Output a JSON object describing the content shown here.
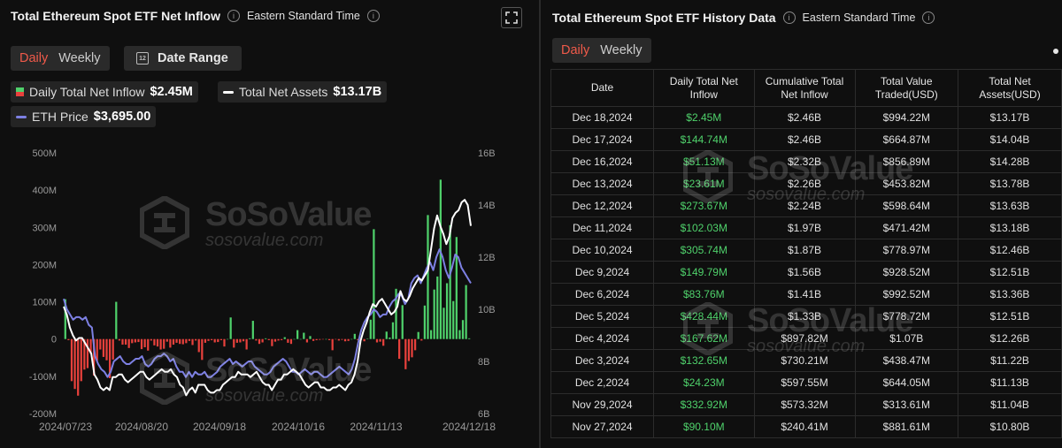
{
  "left": {
    "title": "Total Ethereum Spot ETF Net Inflow",
    "timezone": "Eastern Standard Time",
    "tabs": [
      "Daily",
      "Weekly"
    ],
    "active_tab": "Daily",
    "date_range_label": "Date Range",
    "calendar_icon_text": "12",
    "legend": {
      "inflow_label": "Daily Total Net Inflow",
      "inflow_value": "$2.45M",
      "assets_label": "Total Net Assets",
      "assets_value": "$13.17B",
      "eth_label": "ETH Price",
      "eth_value": "$3,695.00"
    },
    "watermark": {
      "brand": "SoSoValue",
      "site": "sosovalue.com"
    }
  },
  "right": {
    "title": "Total Ethereum Spot ETF History Data",
    "timezone": "Eastern Standard Time",
    "tabs": [
      "Daily",
      "Weekly"
    ],
    "active_tab": "Daily",
    "columns": [
      "Date",
      "Daily Total Net Inflow",
      "Cumulative Total Net Inflow",
      "Total Value Traded(USD)",
      "Total Net Assets(USD)"
    ],
    "rows": [
      [
        "Dec 18,2024",
        "$2.45M",
        "$2.46B",
        "$994.22M",
        "$13.17B"
      ],
      [
        "Dec 17,2024",
        "$144.74M",
        "$2.46B",
        "$664.87M",
        "$14.04B"
      ],
      [
        "Dec 16,2024",
        "$51.13M",
        "$2.32B",
        "$856.89M",
        "$14.28B"
      ],
      [
        "Dec 13,2024",
        "$23.61M",
        "$2.26B",
        "$453.82M",
        "$13.78B"
      ],
      [
        "Dec 12,2024",
        "$273.67M",
        "$2.24B",
        "$598.64M",
        "$13.63B"
      ],
      [
        "Dec 11,2024",
        "$102.03M",
        "$1.97B",
        "$471.42M",
        "$13.18B"
      ],
      [
        "Dec 10,2024",
        "$305.74M",
        "$1.87B",
        "$778.97M",
        "$12.46B"
      ],
      [
        "Dec 9,2024",
        "$149.79M",
        "$1.56B",
        "$928.52M",
        "$12.51B"
      ],
      [
        "Dec 6,2024",
        "$83.76M",
        "$1.41B",
        "$992.52M",
        "$13.36B"
      ],
      [
        "Dec 5,2024",
        "$428.44M",
        "$1.33B",
        "$778.72M",
        "$12.51B"
      ],
      [
        "Dec 4,2024",
        "$167.62M",
        "$897.82M",
        "$1.07B",
        "$12.26B"
      ],
      [
        "Dec 3,2024",
        "$132.65M",
        "$730.21M",
        "$438.47M",
        "$11.22B"
      ],
      [
        "Dec 2,2024",
        "$24.23M",
        "$597.55M",
        "$644.05M",
        "$11.13B"
      ],
      [
        "Nov 29,2024",
        "$332.92M",
        "$573.32M",
        "$313.61M",
        "$11.04B"
      ],
      [
        "Nov 27,2024",
        "$90.10M",
        "$240.41M",
        "$881.61M",
        "$10.80B"
      ]
    ]
  },
  "chart_data": {
    "type": "bar",
    "title": "Total Ethereum Spot ETF Net Inflow",
    "left_axis": {
      "ticks": [
        "500M",
        "400M",
        "300M",
        "200M",
        "100M",
        "0",
        "-100M",
        "-200M"
      ],
      "range": [
        -200,
        500
      ],
      "unit": "M USD"
    },
    "right_axis": {
      "ticks": [
        "16B",
        "14B",
        "12B",
        "10B",
        "8B",
        "6B"
      ],
      "range": [
        6,
        16
      ],
      "unit": "B USD"
    },
    "x_ticks": [
      "2024/07/23",
      "2024/08/20",
      "2024/09/18",
      "2024/10/16",
      "2024/11/13",
      "2024/12/18"
    ],
    "colors": {
      "positive": "#4fd16b",
      "negative": "#e8413c",
      "assets": "#ffffff",
      "eth": "#7d80e3"
    },
    "series": [
      {
        "name": "Daily Total Net Inflow",
        "type": "bar",
        "values": [
          107,
          -3,
          -113,
          -134,
          -152,
          -113,
          -82,
          -78,
          -40,
          -98,
          -58,
          -28,
          -48,
          -57,
          -105,
          -55,
          100,
          -4,
          -15,
          -15,
          -24,
          -11,
          -9,
          -8,
          -27,
          -22,
          -31,
          -4,
          -17,
          -20,
          -28,
          -26,
          -7,
          -23,
          -15,
          -10,
          -13,
          -14,
          -11,
          -5,
          -16,
          -4,
          -35,
          -56,
          -10,
          -5,
          -3,
          -9,
          -8,
          -3,
          -20,
          0,
          58,
          -23,
          -10,
          -9,
          -6,
          -28,
          2,
          49,
          -4,
          -13,
          -9,
          2,
          -3,
          -19,
          -7,
          -4,
          -3,
          5,
          -10,
          -13,
          0,
          24,
          0,
          17,
          -9,
          8,
          -5,
          -3,
          -2,
          -1,
          0,
          -3,
          -30,
          -1,
          -4,
          -2,
          -6,
          -5,
          0,
          14,
          -3,
          -2,
          -6,
          1,
          52,
          295,
          -9,
          -7,
          -18,
          20,
          4,
          45,
          135,
          -53,
          91,
          -81,
          -59,
          -49,
          -30,
          19,
          -4,
          90,
          333,
          24,
          133,
          168,
          428,
          84,
          150,
          306,
          102,
          274,
          24,
          51,
          145,
          2
        ]
      },
      {
        "name": "Total Net Assets",
        "type": "line",
        "axis": "right",
        "values": [
          10.1,
          9.8,
          9.3,
          9.0,
          8.8,
          8.9,
          8.9,
          8.7,
          8.5,
          8.3,
          7.5,
          7.3,
          7.0,
          6.9,
          7.0,
          6.9,
          7.4,
          7.4,
          7.5,
          7.5,
          7.3,
          7.2,
          7.3,
          7.4,
          7.5,
          7.6,
          7.6,
          7.4,
          7.3,
          7.4,
          7.5,
          7.6,
          7.7,
          7.6,
          7.6,
          7.7,
          7.5,
          7.4,
          7.1,
          7.0,
          6.7,
          6.9,
          7.0,
          6.8,
          7.1,
          7.1,
          7.1,
          6.9,
          6.8,
          6.8,
          6.9,
          6.9,
          7.1,
          7.2,
          7.3,
          7.4,
          7.4,
          7.6,
          7.5,
          7.5,
          7.5,
          7.4,
          7.5,
          7.6,
          7.4,
          7.2,
          7.1,
          7.1,
          6.9,
          7.1,
          7.3,
          7.3,
          7.5,
          7.5,
          7.6,
          7.7,
          7.6,
          7.5,
          7.3,
          7.1,
          7.0,
          7.1,
          7.2,
          7.2,
          7.0,
          7.0,
          6.9,
          6.9,
          7.0,
          7.0,
          7.1,
          7.0,
          6.9,
          7.1,
          7.2,
          7.5,
          8.0,
          8.8,
          9.2,
          9.5,
          9.9,
          10.2,
          10.1,
          10.3,
          10.4,
          10.2,
          10.0,
          9.8,
          9.9,
          10.1,
          10.7,
          10.4,
          10.3,
          10.5,
          10.8,
          11.0,
          11.2,
          11.1,
          11.3,
          11.5,
          12.3,
          13.1,
          13.6,
          13.2,
          12.9,
          12.5,
          12.8,
          13.5,
          13.7,
          13.8,
          14.1,
          14.2,
          14.0,
          13.2
        ]
      },
      {
        "name": "ETH Price",
        "type": "line",
        "axis": "right",
        "values": [
          10.4,
          10.0,
          9.8,
          9.6,
          9.7,
          9.7,
          9.6,
          9.7,
          9.4,
          9.3,
          8.2,
          7.9,
          7.7,
          7.6,
          7.4,
          7.6,
          8.0,
          8.1,
          8.2,
          8.0,
          7.9,
          7.9,
          8.0,
          8.1,
          8.1,
          8.2,
          7.9,
          7.8,
          7.9,
          8.1,
          8.2,
          8.2,
          8.3,
          8.2,
          8.0,
          8.1,
          7.8,
          7.6,
          7.6,
          7.4,
          7.6,
          7.4,
          7.6,
          7.5,
          7.5,
          7.6,
          7.4,
          7.4,
          7.5,
          7.6,
          7.8,
          7.9,
          8.0,
          8.1,
          7.9,
          8.0,
          7.9,
          7.8,
          7.9,
          8.0,
          8.0,
          7.8,
          7.7,
          7.6,
          7.5,
          7.5,
          7.6,
          7.8,
          7.9,
          8.0,
          8.1,
          8.0,
          7.8,
          7.6,
          7.6,
          7.5,
          7.6,
          7.7,
          7.6,
          7.5,
          7.6,
          7.6,
          7.5,
          7.4,
          7.4,
          7.5,
          7.6,
          7.7,
          7.8,
          7.7,
          7.6,
          7.5,
          7.7,
          8.1,
          8.7,
          9.2,
          9.5,
          9.7,
          9.8,
          10.0,
          9.9,
          9.7,
          9.8,
          9.8,
          10.1,
          10.3,
          10.4,
          10.6,
          10.5,
          10.2,
          10.4,
          11.0,
          11.2,
          11.3,
          11.0,
          11.3,
          11.6,
          11.8,
          11.5,
          12.0,
          12.3,
          12.0,
          11.5,
          11.2,
          11.6,
          12.1,
          12.0,
          11.6,
          11.4,
          11.2,
          11.0
        ]
      }
    ]
  }
}
